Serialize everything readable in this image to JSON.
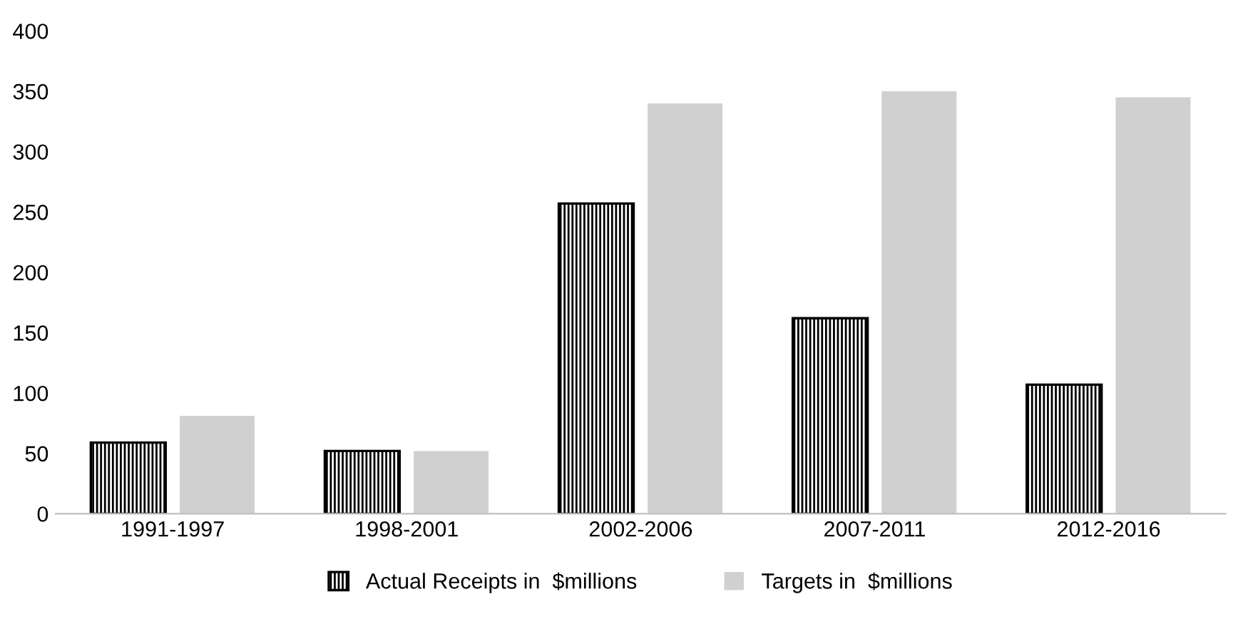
{
  "chart_data": {
    "type": "bar",
    "categories": [
      "1991-1997",
      "1998-2001",
      "2002-2006",
      "2007-2011",
      "2012-2016"
    ],
    "series": [
      {
        "name": "Actual Receipts in  $millions",
        "color": "#000000",
        "values": [
          59,
          52,
          257,
          162,
          107
        ]
      },
      {
        "name": "Targets in  $millions",
        "color": "#d0d0d0",
        "values": [
          81,
          52,
          340,
          350,
          345
        ]
      }
    ],
    "ylim": [
      0,
      400
    ],
    "yticks": [
      0,
      50,
      100,
      150,
      200,
      250,
      300,
      350,
      400
    ],
    "grid": false,
    "legend": "bottom"
  }
}
